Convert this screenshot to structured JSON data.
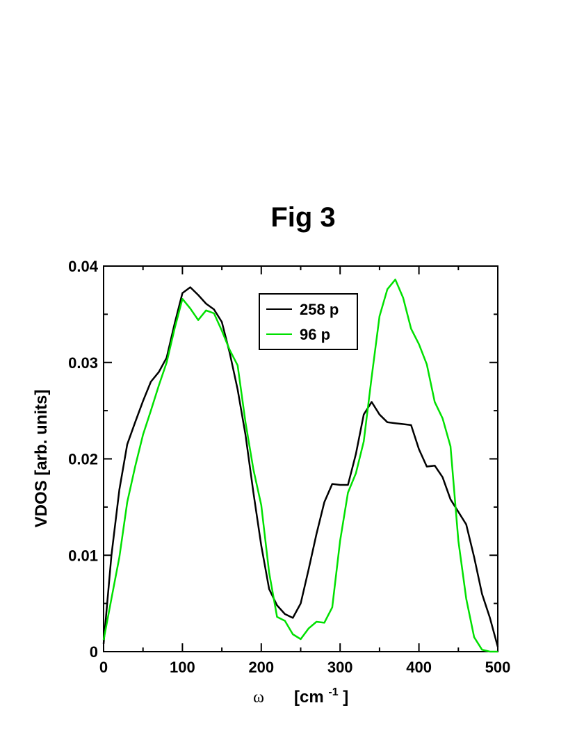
{
  "chart_data": {
    "type": "line",
    "title": "Fig 3",
    "xlabel_symbol": "ω",
    "xlabel_unit": "[cm",
    "xlabel_exp": "-1",
    "xlabel_close": "]",
    "ylabel": "VDOS  [arb. units]",
    "xlim": [
      0,
      500
    ],
    "ylim": [
      0,
      0.04
    ],
    "x_ticks": [
      0,
      100,
      200,
      300,
      400,
      500
    ],
    "x_tick_labels": [
      "0",
      "100",
      "200",
      "300",
      "400",
      "500"
    ],
    "y_ticks": [
      0,
      0.01,
      0.02,
      0.03,
      0.04
    ],
    "y_tick_labels": [
      "0",
      "0.01",
      "0.02",
      "0.03",
      "0.04"
    ],
    "grid": false,
    "legend_position": "top-center",
    "series": [
      {
        "name": "258 p",
        "color": "#000000",
        "x": [
          0,
          10,
          20,
          30,
          40,
          50,
          60,
          70,
          80,
          90,
          100,
          110,
          120,
          130,
          140,
          150,
          160,
          170,
          180,
          190,
          200,
          210,
          220,
          230,
          240,
          250,
          260,
          270,
          280,
          290,
          300,
          310,
          320,
          330,
          340,
          350,
          360,
          370,
          380,
          390,
          400,
          410,
          420,
          430,
          440,
          450,
          460,
          470,
          480,
          490,
          500
        ],
        "y": [
          0.0008,
          0.01,
          0.0168,
          0.0215,
          0.0238,
          0.026,
          0.028,
          0.029,
          0.0305,
          0.034,
          0.0372,
          0.0378,
          0.037,
          0.0361,
          0.0355,
          0.0342,
          0.031,
          0.0272,
          0.0225,
          0.0165,
          0.011,
          0.0065,
          0.0048,
          0.0039,
          0.0035,
          0.005,
          0.0085,
          0.0122,
          0.0155,
          0.0174,
          0.0173,
          0.0173,
          0.0205,
          0.0246,
          0.0259,
          0.0246,
          0.0238,
          0.0237,
          0.0236,
          0.0235,
          0.021,
          0.0192,
          0.0193,
          0.0181,
          0.0158,
          0.0145,
          0.0132,
          0.0098,
          0.006,
          0.0035,
          0.0005
        ]
      },
      {
        "name": "96 p",
        "color": "#00e000",
        "x": [
          0,
          10,
          20,
          30,
          40,
          50,
          60,
          70,
          80,
          90,
          100,
          110,
          120,
          130,
          140,
          150,
          160,
          170,
          180,
          190,
          200,
          210,
          220,
          230,
          240,
          250,
          260,
          270,
          280,
          290,
          300,
          310,
          320,
          330,
          340,
          350,
          360,
          370,
          380,
          390,
          400,
          410,
          420,
          430,
          440,
          450,
          460,
          470,
          480,
          490,
          500
        ],
        "y": [
          0.0012,
          0.0055,
          0.0098,
          0.0155,
          0.0192,
          0.0225,
          0.025,
          0.0276,
          0.03,
          0.0335,
          0.0366,
          0.0356,
          0.0344,
          0.0354,
          0.0351,
          0.0333,
          0.0313,
          0.0297,
          0.0238,
          0.0189,
          0.0152,
          0.0082,
          0.0036,
          0.0032,
          0.0018,
          0.0013,
          0.0024,
          0.0031,
          0.003,
          0.0046,
          0.0115,
          0.0165,
          0.0185,
          0.0218,
          0.0285,
          0.0348,
          0.0376,
          0.0386,
          0.0367,
          0.0335,
          0.0319,
          0.0298,
          0.0259,
          0.0242,
          0.0213,
          0.0115,
          0.0055,
          0.0015,
          0.0002,
          0.0,
          0.0
        ]
      }
    ]
  }
}
